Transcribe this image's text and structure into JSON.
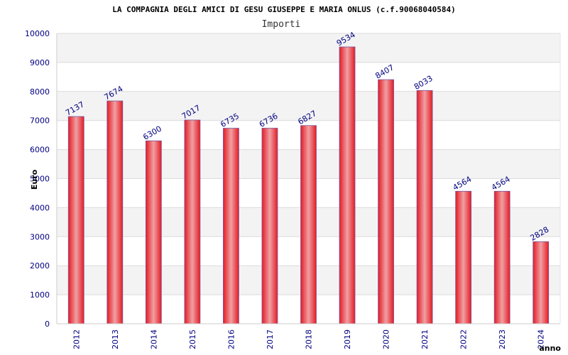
{
  "chart_data": {
    "type": "bar",
    "title": "LA COMPAGNIA DEGLI AMICI DI GESU GIUSEPPE E MARIA ONLUS (c.f.90068040584)",
    "subtitle": "Importi",
    "xlabel": "anno",
    "ylabel": "Euro",
    "ylim": [
      0,
      10000
    ],
    "yticks": [
      0,
      1000,
      2000,
      3000,
      4000,
      5000,
      6000,
      7000,
      8000,
      9000,
      10000
    ],
    "grid": true,
    "categories": [
      "2012",
      "2013",
      "2014",
      "2015",
      "2016",
      "2017",
      "2018",
      "2019",
      "2020",
      "2021",
      "2022",
      "2023",
      "2024"
    ],
    "values": [
      7137,
      7674,
      6300,
      7017,
      6735,
      6736,
      6827,
      9534,
      8407,
      8033,
      4564,
      4564,
      2828
    ],
    "bar_color": "#e8202a",
    "label_color": "#000080"
  }
}
